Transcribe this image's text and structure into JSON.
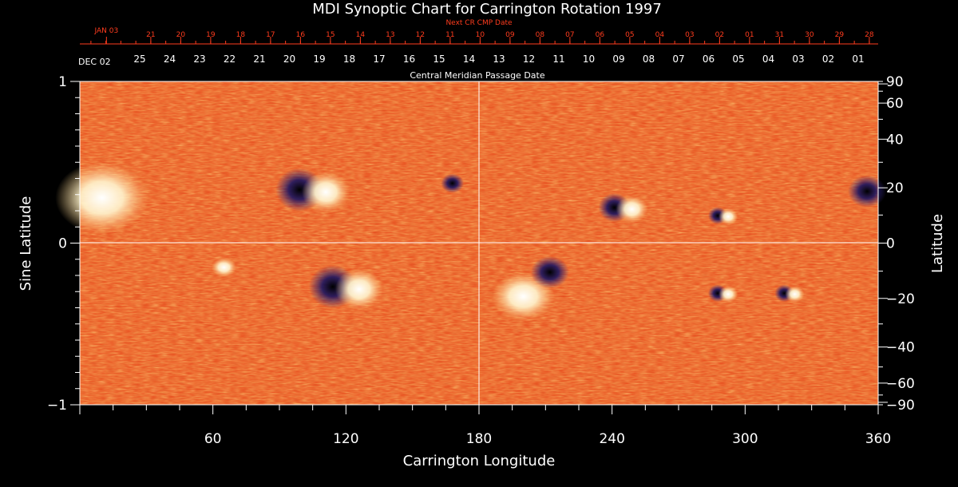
{
  "chart_data": {
    "type": "heatmap",
    "title": "MDI Synoptic Chart for Carrington Rotation 1997",
    "xlabel": "Carrington Longitude",
    "ylabel_left": "Sine Latitude",
    "ylabel_right": "Latitude",
    "xlim": [
      0,
      360
    ],
    "ylim": [
      -1,
      1
    ],
    "x_ticks": [
      60,
      120,
      180,
      240,
      300,
      360
    ],
    "y_ticks_left": [
      {
        "v": 1,
        "label": "1"
      },
      {
        "v": 0,
        "label": "0"
      },
      {
        "v": -1,
        "label": "−1"
      }
    ],
    "latitude_ticks": [
      {
        "lat": 90,
        "label": "90"
      },
      {
        "lat": 60,
        "label": "60"
      },
      {
        "lat": 40,
        "label": "40"
      },
      {
        "lat": 20,
        "label": "20"
      },
      {
        "lat": 0,
        "label": "0"
      },
      {
        "lat": -20,
        "label": "−20"
      },
      {
        "lat": -40,
        "label": "−40"
      },
      {
        "lat": -60,
        "label": "−60"
      },
      {
        "lat": -90,
        "label": "−90"
      }
    ],
    "grid": "crosshair at longitude 180 and sine latitude 0",
    "top_axis_title": "Central Meridian Passage Date",
    "cmp_dates": {
      "start_label": "DEC 02",
      "labels": [
        "25",
        "24",
        "23",
        "22",
        "21",
        "20",
        "19",
        "18",
        "17",
        "16",
        "15",
        "14",
        "13",
        "12",
        "11",
        "10",
        "09",
        "08",
        "07",
        "06",
        "05",
        "04",
        "03",
        "02",
        "01"
      ],
      "label_longitudes": [
        27,
        40.5,
        54,
        67.5,
        81,
        94.5,
        108,
        121.5,
        135,
        148.5,
        162,
        175.5,
        189,
        202.5,
        216,
        229.5,
        243,
        256.5,
        270,
        283.5,
        297,
        310.5,
        324,
        337.5,
        351
      ]
    },
    "next_cr_dates": {
      "title": "Next CR CMP Date",
      "start_label": "JAN 03",
      "start_longitude": 12,
      "labels": [
        "21",
        "20",
        "19",
        "18",
        "17",
        "16",
        "15",
        "14",
        "13",
        "12",
        "11",
        "10",
        "09",
        "08",
        "07",
        "06",
        "05",
        "04",
        "03",
        "02",
        "01",
        "31",
        "30",
        "29",
        "28"
      ],
      "label_longitudes": [
        32,
        45.5,
        59,
        72.5,
        86,
        99.5,
        113,
        126.5,
        140,
        153.5,
        167,
        180.5,
        194,
        207.5,
        221,
        234.5,
        248,
        261.5,
        275,
        288.5,
        302,
        315.5,
        329,
        342.5,
        356
      ]
    },
    "colors": {
      "background": "#000000",
      "text": "#ffffff",
      "next_cr": "#ff3c1e",
      "field_low": "#1a1460",
      "field_mid": "#e8471a",
      "field_high": "#ffffff"
    },
    "active_regions": [
      {
        "lon": 105,
        "sinlat": 0.33,
        "polarity": "mixed",
        "size": "large"
      },
      {
        "lon": 120,
        "sinlat": -0.27,
        "polarity": "mixed",
        "size": "large"
      },
      {
        "lon": 168,
        "sinlat": 0.37,
        "polarity": "negative",
        "size": "small"
      },
      {
        "lon": 65,
        "sinlat": -0.15,
        "polarity": "positive",
        "size": "small"
      },
      {
        "lon": 200,
        "sinlat": -0.33,
        "polarity": "positive",
        "size": "large"
      },
      {
        "lon": 212,
        "sinlat": -0.18,
        "polarity": "negative",
        "size": "medium"
      },
      {
        "lon": 245,
        "sinlat": 0.22,
        "polarity": "mixed",
        "size": "medium"
      },
      {
        "lon": 290,
        "sinlat": 0.17,
        "polarity": "mixed",
        "size": "small"
      },
      {
        "lon": 290,
        "sinlat": -0.31,
        "polarity": "mixed",
        "size": "small"
      },
      {
        "lon": 320,
        "sinlat": -0.31,
        "polarity": "mixed",
        "size": "small"
      },
      {
        "lon": 355,
        "sinlat": 0.32,
        "polarity": "negative",
        "size": "medium"
      },
      {
        "lon": 10,
        "sinlat": 0.28,
        "polarity": "positive",
        "size": "diffuse"
      }
    ]
  }
}
